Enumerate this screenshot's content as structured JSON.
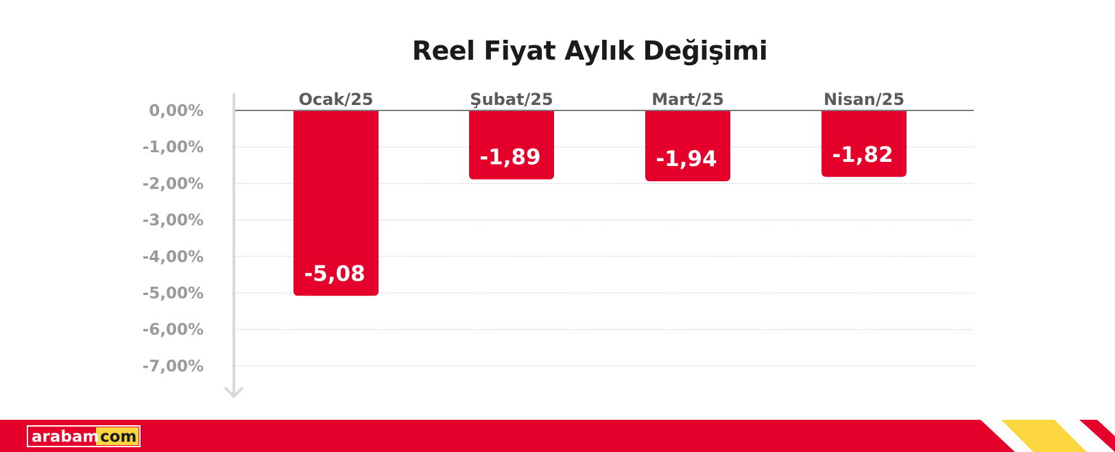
{
  "colors": {
    "bar": "#e4002b",
    "footer_red": "#e4002b",
    "footer_yellow": "#fbd63f",
    "gridline": "#c8c8c8",
    "zero_line": "#7a7a7a",
    "axis_arrow": "#d9d9d9",
    "logo_yellow": "#fbd63f"
  },
  "chart_data": {
    "type": "bar",
    "title": "Reel Fiyat Aylık Değişimi",
    "categories": [
      "Ocak/25",
      "Şubat/25",
      "Mart/25",
      "Nisan/25"
    ],
    "values": [
      -5.08,
      -1.89,
      -1.94,
      -1.82
    ],
    "value_labels": [
      "-5,08",
      "-1,89",
      "-1,94",
      "-1,82"
    ],
    "ylim": [
      -7,
      0
    ],
    "yticks": [
      0,
      -1,
      -2,
      -3,
      -4,
      -5,
      -6,
      -7
    ],
    "ytick_labels": [
      "0,00%",
      "-1,00%",
      "-2,00%",
      "-3,00%",
      "-4,00%",
      "-5,00%",
      "-6,00%",
      "-7,00%"
    ],
    "grid": true,
    "category_labels_position": "top",
    "legend": "none"
  },
  "footer": {
    "logo_left": "arabam",
    "logo_right": "com"
  }
}
